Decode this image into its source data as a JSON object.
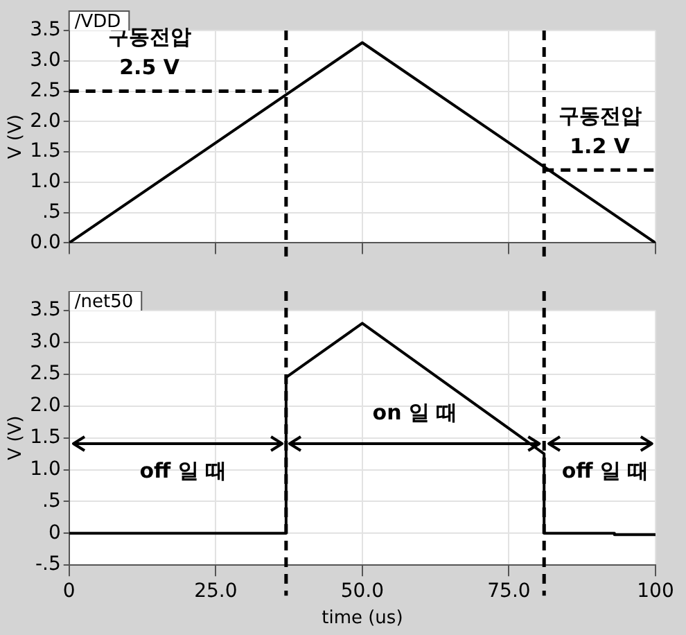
{
  "chart_data": [
    {
      "type": "line",
      "ylabel": "V (V)",
      "xlim": [
        0,
        100
      ],
      "xticks": [
        {
          "value": 0,
          "label": null
        },
        {
          "value": 25,
          "label": null
        },
        {
          "value": 50,
          "label": null
        },
        {
          "value": 75,
          "label": null
        },
        {
          "value": 100,
          "label": null
        }
      ],
      "ylim": [
        0,
        3.5
      ],
      "yticks": [
        {
          "value": 0,
          "label": "0.0"
        },
        {
          "value": 0.5,
          "label": ".5"
        },
        {
          "value": 1,
          "label": "1.0"
        },
        {
          "value": 1.5,
          "label": "1.5"
        },
        {
          "value": 2,
          "label": "2.0"
        },
        {
          "value": 2.5,
          "label": "2.5"
        },
        {
          "value": 3,
          "label": "3.0"
        },
        {
          "value": 3.5,
          "label": "3.5"
        }
      ],
      "tick_labels": "y",
      "grid": true,
      "legend": false,
      "marker": "none",
      "line_style": "solid",
      "series": [
        {
          "name": "/VDD",
          "color": "#000000",
          "x": [
            0,
            50,
            100
          ],
          "values": [
            0,
            3.3,
            0
          ]
        }
      ],
      "ref_lines": [
        {
          "axis": "x",
          "value": 37,
          "line_style": "dashed",
          "color": "#000000"
        },
        {
          "axis": "x",
          "value": 81,
          "line_style": "dashed",
          "color": "#000000"
        },
        {
          "axis": "y",
          "value": 2.5,
          "line_style": "dashed",
          "color": "#000000"
        },
        {
          "axis": "y",
          "value": 1.2,
          "line_style": "dashed",
          "color": "#000000"
        }
      ],
      "annotations": [
        "구동전압 2.5 V",
        "구동전압 1.2 V"
      ]
    },
    {
      "type": "line",
      "xlabel": "time (us)",
      "ylabel": "V (V)",
      "xlim": [
        0,
        100
      ],
      "xticks": [
        0,
        {
          "value": 25,
          "label": "25.0"
        },
        {
          "value": 50,
          "label": "50.0"
        },
        {
          "value": 75,
          "label": "75.0"
        },
        100
      ],
      "ylim": [
        -0.5,
        3.5
      ],
      "yticks": [
        {
          "value": -0.5,
          "label": "-.5"
        },
        0,
        {
          "value": 0.5,
          "label": ".5"
        },
        {
          "value": 1,
          "label": "1.0"
        },
        {
          "value": 1.5,
          "label": "1.5"
        },
        {
          "value": 2,
          "label": "2.0"
        },
        {
          "value": 2.5,
          "label": "2.5"
        },
        {
          "value": 3,
          "label": "3.0"
        },
        {
          "value": 3.5,
          "label": "3.5"
        }
      ],
      "grid": true,
      "legend": false,
      "marker": "none",
      "line_style": "solid",
      "series": [
        {
          "name": "/net50",
          "color": "#000000",
          "x": [
            0,
            37,
            37,
            50,
            81,
            81,
            93,
            93,
            100
          ],
          "values": [
            0,
            0,
            2.45,
            3.3,
            1.25,
            0,
            0,
            -0.02,
            -0.02
          ]
        }
      ],
      "ref_lines": [
        {
          "axis": "x",
          "value": 37,
          "line_style": "dashed",
          "color": "#000000"
        },
        {
          "axis": "x",
          "value": 81,
          "line_style": "dashed",
          "color": "#000000"
        }
      ],
      "annotations": [
        "off 일 때",
        "on 일 때",
        "off 일 때"
      ]
    }
  ]
}
